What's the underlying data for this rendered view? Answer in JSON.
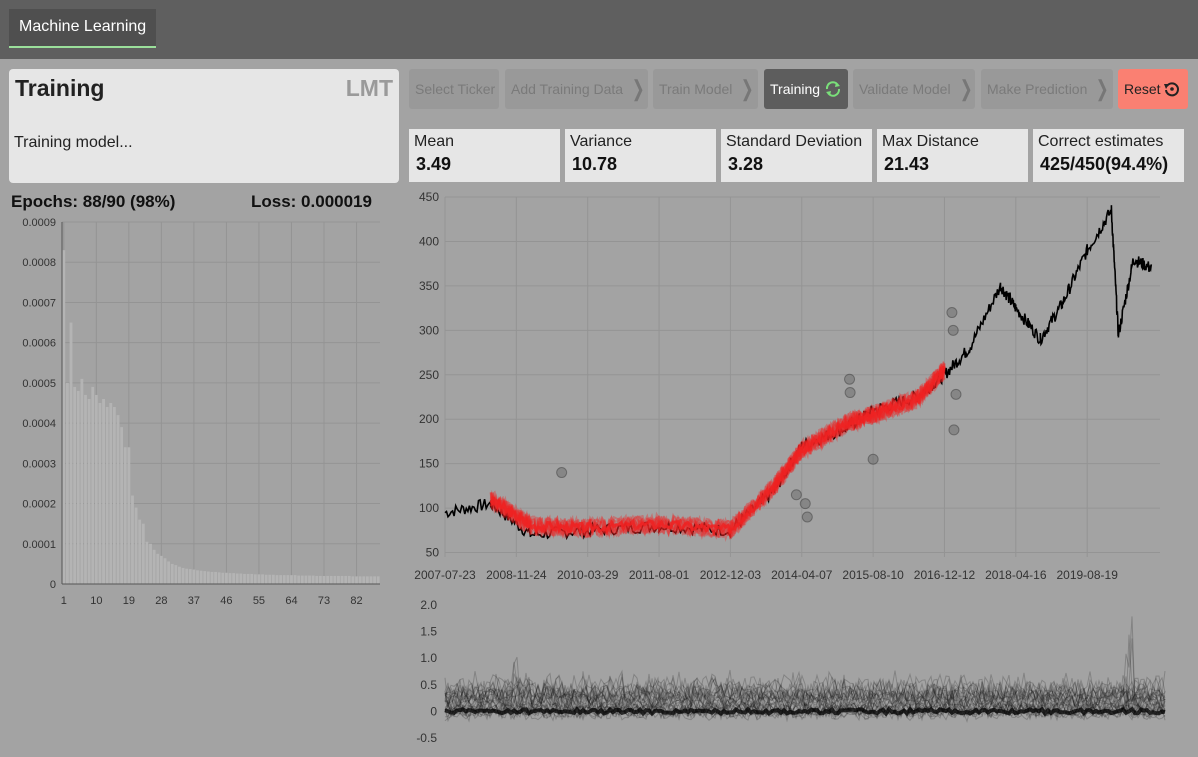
{
  "app": {
    "tab_label": "Machine Learning"
  },
  "info": {
    "title": "Training",
    "ticker": "LMT",
    "status": "Training model..."
  },
  "steps": [
    {
      "label": "Select Ticker",
      "chevron": false,
      "icon": ""
    },
    {
      "label": "Add Training Data",
      "chevron": true,
      "icon": ""
    },
    {
      "label": "Train Model",
      "chevron": true,
      "icon": ""
    },
    {
      "label": "Training",
      "chevron": false,
      "icon": "refresh-icon"
    },
    {
      "label": "Validate Model",
      "chevron": true,
      "icon": ""
    },
    {
      "label": "Make Prediction",
      "chevron": true,
      "icon": ""
    },
    {
      "label": "Reset",
      "chevron": false,
      "icon": "reset-icon"
    }
  ],
  "stats": [
    {
      "label": "Mean",
      "value": "3.49"
    },
    {
      "label": "Variance",
      "value": "10.78"
    },
    {
      "label": "Standard Deviation",
      "value": "3.28"
    },
    {
      "label": "Max Distance",
      "value": "21.43"
    },
    {
      "label": "Correct estimates",
      "value": "425/450(94.4%)"
    }
  ],
  "training": {
    "epochs_text": "Epochs: 88/90 (98%)",
    "loss_text": "Loss: 0.000019"
  },
  "colors": {
    "accent_green": "#9be09b",
    "reset": "#fa8072",
    "price_line": "#000000",
    "prediction": "#ee2222",
    "loss_bar": "#b4b4b4"
  },
  "chart_data": [
    {
      "type": "bar",
      "name": "loss-per-epoch",
      "x": [
        1,
        2,
        3,
        4,
        5,
        6,
        7,
        8,
        9,
        10,
        11,
        12,
        13,
        14,
        15,
        16,
        17,
        18,
        19,
        20,
        21,
        22,
        23,
        24,
        25,
        26,
        27,
        28,
        29,
        30,
        31,
        32,
        33,
        34,
        35,
        36,
        37,
        38,
        39,
        40,
        41,
        42,
        43,
        44,
        45,
        46,
        47,
        48,
        49,
        50,
        51,
        52,
        53,
        54,
        55,
        56,
        57,
        58,
        59,
        60,
        61,
        62,
        63,
        64,
        65,
        66,
        67,
        68,
        69,
        70,
        71,
        72,
        73,
        74,
        75,
        76,
        77,
        78,
        79,
        80,
        81,
        82,
        83,
        84,
        85,
        86,
        87,
        88
      ],
      "values": [
        0.00083,
        0.0005,
        0.00065,
        0.00049,
        0.00048,
        0.00051,
        0.00047,
        0.00046,
        0.00049,
        0.00047,
        0.00045,
        0.00046,
        0.00044,
        0.00045,
        0.00044,
        0.00042,
        0.00039,
        0.00034,
        0.00034,
        0.00022,
        0.00019,
        0.00016,
        0.00015,
        0.000105,
        0.0001,
        8.5e-05,
        7.5e-05,
        7e-05,
        6.4e-05,
        5.6e-05,
        5e-05,
        4.7e-05,
        4.3e-05,
        4e-05,
        3.8e-05,
        3.7e-05,
        3.6e-05,
        3.4e-05,
        3.3e-05,
        3.2e-05,
        3.1e-05,
        3e-05,
        3e-05,
        2.9e-05,
        2.8e-05,
        2.8e-05,
        2.7e-05,
        2.7e-05,
        2.6e-05,
        2.6e-05,
        2.5e-05,
        2.5e-05,
        2.5e-05,
        2.4e-05,
        2.4e-05,
        2.4e-05,
        2.3e-05,
        2.3e-05,
        2.3e-05,
        2.2e-05,
        2.2e-05,
        2.2e-05,
        2.2e-05,
        2.2e-05,
        2.2e-05,
        2.1e-05,
        2.1e-05,
        2.1e-05,
        2.1e-05,
        2.1e-05,
        2e-05,
        2e-05,
        2e-05,
        2e-05,
        2e-05,
        2e-05,
        2e-05,
        2e-05,
        2e-05,
        2e-05,
        1.9e-05,
        1.9e-05,
        1.9e-05,
        1.9e-05,
        1.9e-05,
        1.9e-05,
        1.9e-05,
        1.9e-05
      ],
      "x_ticks": [
        "1",
        "10",
        "19",
        "28",
        "37",
        "46",
        "55",
        "64",
        "73",
        "82"
      ],
      "y_ticks": [
        "0",
        "0.0001",
        "0.0002",
        "0.0003",
        "0.0004",
        "0.0005",
        "0.0006",
        "0.0007",
        "0.0008",
        "0.0009"
      ],
      "ylim": [
        0,
        0.0009
      ],
      "grid": true
    },
    {
      "type": "line",
      "name": "price-history",
      "x": [
        "2007-07-23",
        "2008-06-01",
        "2009-03-01",
        "2010-03-29",
        "2011-08-01",
        "2012-12-03",
        "2013-10-01",
        "2014-04-07",
        "2015-02-01",
        "2015-08-10",
        "2016-06-01",
        "2016-12-12",
        "2017-06-01",
        "2018-01-01",
        "2018-04-16",
        "2018-10-01",
        "2019-03-01",
        "2019-08-19",
        "2020-02-01",
        "2020-03-20",
        "2020-07-01",
        "2020-11-01"
      ],
      "series": [
        {
          "values": [
            95,
            105,
            70,
            75,
            80,
            75,
            120,
            170,
            190,
            210,
            225,
            250,
            280,
            350,
            325,
            290,
            330,
            390,
            435,
            295,
            380,
            370
          ]
        },
        {
          "values": [
            null,
            110,
            80,
            78,
            82,
            76,
            125,
            165,
            195,
            205,
            222,
            255,
            null,
            null,
            null,
            null,
            null,
            null,
            null,
            null,
            null,
            null
          ]
        }
      ],
      "markers": [
        {
          "x": "2009-10-01",
          "y": 140
        },
        {
          "x": "2014-03-01",
          "y": 115
        },
        {
          "x": "2014-05-01",
          "y": 105
        },
        {
          "x": "2014-05-15",
          "y": 90
        },
        {
          "x": "2015-03-01",
          "y": 245
        },
        {
          "x": "2015-03-05",
          "y": 230
        },
        {
          "x": "2015-08-10",
          "y": 155
        },
        {
          "x": "2017-02-01",
          "y": 320
        },
        {
          "x": "2017-02-10",
          "y": 300
        },
        {
          "x": "2017-03-01",
          "y": 228
        },
        {
          "x": "2017-02-15",
          "y": 188
        }
      ],
      "x_ticks": [
        "2007-07-23",
        "2008-11-24",
        "2010-03-29",
        "2011-08-01",
        "2012-12-03",
        "2014-04-07",
        "2015-08-10",
        "2016-12-12",
        "2018-04-16",
        "2019-08-19"
      ],
      "y_ticks": [
        "50",
        "100",
        "150",
        "200",
        "250",
        "300",
        "350",
        "400",
        "450"
      ],
      "ylim": [
        45,
        450
      ],
      "grid": true
    },
    {
      "type": "line",
      "name": "volume-residuals",
      "y_ticks": [
        "-0.5",
        "0",
        "0.5",
        "1.0",
        "1.5",
        "2.0"
      ],
      "ylim": [
        -0.5,
        2.0
      ],
      "grid": false
    }
  ]
}
